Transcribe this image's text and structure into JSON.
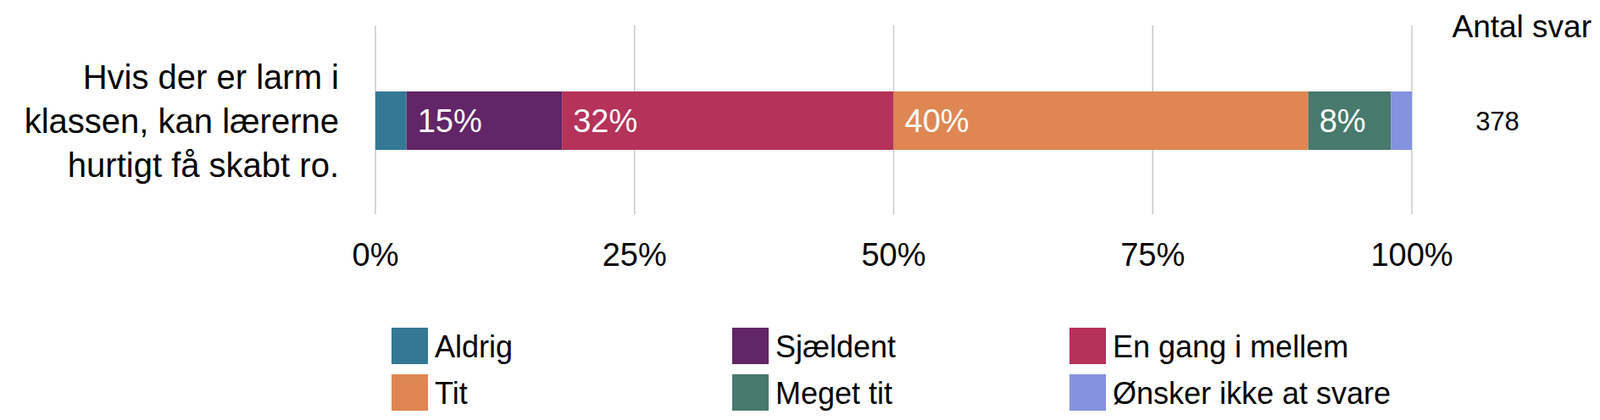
{
  "chart_data": {
    "type": "bar",
    "orientation": "horizontal",
    "stacked": true,
    "data_labels": true,
    "grid": true,
    "legend": "bottom",
    "categories": [
      "Hvis der er larm i klassen, kan lærerne hurtigt få skabt ro."
    ],
    "xlim": [
      0,
      100
    ],
    "xticks": [
      {
        "value": 0,
        "label": "0%"
      },
      {
        "value": 25,
        "label": "25%"
      },
      {
        "value": 50,
        "label": "50%"
      },
      {
        "value": 75,
        "label": "75%"
      },
      {
        "value": 100,
        "label": "100%"
      }
    ],
    "series": [
      {
        "name": "Aldrig",
        "color": "#347896",
        "values": [
          3
        ]
      },
      {
        "name": "Sjældent",
        "color": "#622567",
        "values": [
          15
        ],
        "value_labels": [
          "15%"
        ]
      },
      {
        "name": "En gang i mellem",
        "color": "#b5325a",
        "values": [
          32
        ],
        "value_labels": [
          "32%"
        ]
      },
      {
        "name": "Tit",
        "color": "#de8753",
        "values": [
          40
        ],
        "value_labels": [
          "40%"
        ]
      },
      {
        "name": "Meget tit",
        "color": "#47796d",
        "values": [
          8
        ],
        "value_labels": [
          "8%"
        ]
      },
      {
        "name": "Ønsker ikke at svare",
        "color": "#8592e0",
        "values": [
          2
        ]
      }
    ],
    "count_title": "Antal svar",
    "counts": [
      378
    ]
  }
}
